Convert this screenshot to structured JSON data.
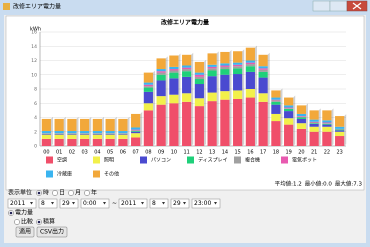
{
  "window": {
    "title": "改修エリア電力量"
  },
  "chart_data": {
    "type": "bar",
    "stacked": true,
    "title": "改修エリア電力量",
    "y_label": "kWh",
    "categories": [
      "00",
      "01",
      "02",
      "03",
      "04",
      "05",
      "06",
      "07",
      "08",
      "09",
      "10",
      "11",
      "12",
      "13",
      "14",
      "15",
      "16",
      "17",
      "18",
      "19",
      "20",
      "21",
      "22",
      "23"
    ],
    "series": [
      {
        "name": "空調",
        "color": "#f04f6a",
        "values": [
          1.0,
          1.0,
          1.0,
          1.0,
          1.0,
          1.0,
          1.0,
          1.2,
          5.0,
          5.8,
          6.0,
          6.2,
          5.6,
          6.3,
          6.5,
          6.6,
          6.8,
          6.2,
          3.5,
          3.0,
          2.4,
          2.0,
          2.0,
          1.4
        ]
      },
      {
        "name": "照明",
        "color": "#f2f04a",
        "values": [
          0.6,
          0.6,
          0.6,
          0.6,
          0.6,
          0.6,
          0.6,
          0.6,
          1.0,
          1.2,
          1.2,
          1.2,
          1.1,
          1.2,
          1.2,
          1.2,
          1.2,
          1.2,
          1.0,
          0.9,
          0.8,
          0.7,
          0.7,
          0.6
        ]
      },
      {
        "name": "パソコン",
        "color": "#4a4ad0",
        "values": [
          0.1,
          0.1,
          0.1,
          0.1,
          0.1,
          0.1,
          0.1,
          0.2,
          1.6,
          2.2,
          2.3,
          2.3,
          2.0,
          2.3,
          2.3,
          2.3,
          2.4,
          2.2,
          1.3,
          1.0,
          0.6,
          0.4,
          0.3,
          0.2
        ]
      },
      {
        "name": "ディスプレイ",
        "color": "#1fd07a",
        "values": [
          0,
          0,
          0,
          0,
          0,
          0,
          0,
          0.1,
          0.6,
          0.8,
          0.8,
          0.8,
          0.7,
          0.8,
          0.8,
          0.8,
          0.8,
          0.8,
          0.4,
          0.3,
          0.2,
          0.1,
          0.1,
          0.1
        ]
      },
      {
        "name": "複合機",
        "color": "#a0a0a0",
        "values": [
          0.1,
          0.1,
          0.1,
          0.1,
          0.1,
          0.1,
          0.1,
          0.1,
          0.2,
          0.3,
          0.3,
          0.3,
          0.3,
          0.3,
          0.3,
          0.3,
          0.3,
          0.3,
          0.2,
          0.1,
          0.1,
          0.1,
          0.1,
          0.1
        ]
      },
      {
        "name": "電気ポット",
        "color": "#e85ab0",
        "values": [
          0,
          0,
          0,
          0,
          0,
          0,
          0,
          0.1,
          0.2,
          0.2,
          0.2,
          0.2,
          0.3,
          0.2,
          0.2,
          0.2,
          0.2,
          0.2,
          0.1,
          0.1,
          0.1,
          0.1,
          0.1,
          0.0
        ]
      },
      {
        "name": "冷蔵庫",
        "color": "#3ab4f0",
        "values": [
          0.3,
          0.3,
          0.3,
          0.3,
          0.3,
          0.3,
          0.3,
          0.3,
          0.3,
          0.3,
          0.3,
          0.3,
          0.3,
          0.3,
          0.3,
          0.3,
          0.3,
          0.3,
          0.3,
          0.3,
          0.3,
          0.3,
          0.3,
          0.3
        ]
      },
      {
        "name": "その他",
        "color": "#f2a83a",
        "values": [
          1.7,
          1.7,
          1.7,
          1.7,
          1.7,
          1.7,
          1.7,
          1.9,
          1.4,
          1.5,
          1.6,
          1.5,
          1.5,
          1.6,
          1.6,
          1.6,
          1.8,
          1.6,
          1.0,
          1.1,
          1.2,
          1.3,
          1.4,
          1.5
        ]
      }
    ],
    "ylim": [
      0,
      16
    ],
    "yticks": [
      0,
      2,
      4,
      6,
      8,
      10,
      12,
      14,
      16
    ],
    "grid": true,
    "legend": "bottom"
  },
  "stats": [
    "最大値:7.3",
    "最小値:0.0",
    "平均値:1.2"
  ],
  "controls": {
    "unit_label": "表示単位",
    "units": [
      {
        "label": "時",
        "selected": true
      },
      {
        "label": "日",
        "selected": false
      },
      {
        "label": "月",
        "selected": false
      },
      {
        "label": "年",
        "selected": false
      }
    ],
    "range": {
      "from": [
        "2011",
        "8",
        "29",
        "0:00"
      ],
      "separator": "~",
      "to": [
        "2011",
        "8",
        "29",
        "23:00"
      ]
    },
    "mode": {
      "label": "電力量",
      "selected": true
    },
    "options": [
      {
        "label": "比較",
        "selected": false
      },
      {
        "label": "積算",
        "selected": true
      }
    ],
    "buttons": [
      "適用",
      "CSV出力"
    ]
  }
}
